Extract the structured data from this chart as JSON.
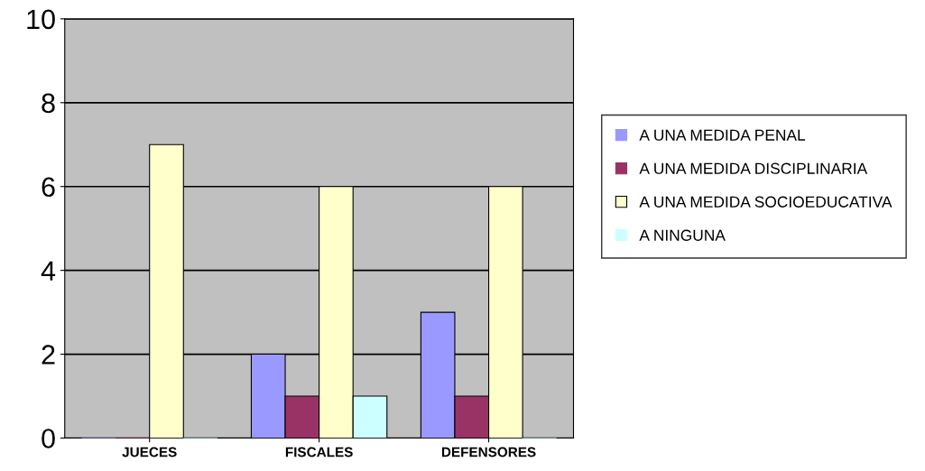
{
  "chart_data": {
    "type": "bar",
    "categories": [
      "JUECES",
      "FISCALES",
      "DEFENSORES"
    ],
    "series": [
      {
        "name": "A UNA MEDIDA PENAL",
        "color": "#9999ff",
        "values": [
          0,
          2,
          3
        ]
      },
      {
        "name": "A UNA MEDIDA DISCIPLINARIA",
        "color": "#993366",
        "values": [
          0,
          1,
          1
        ]
      },
      {
        "name": "A UNA MEDIDA SOCIOEDUCATIVA",
        "color": "#ffffcc",
        "values": [
          7,
          6,
          6
        ]
      },
      {
        "name": "A NINGUNA",
        "color": "#ccffff",
        "values": [
          0,
          1,
          0
        ]
      }
    ],
    "ylim": [
      0,
      10
    ],
    "yticks": [
      0,
      2,
      4,
      6,
      8,
      10
    ],
    "grid": "y",
    "legend": "right"
  }
}
